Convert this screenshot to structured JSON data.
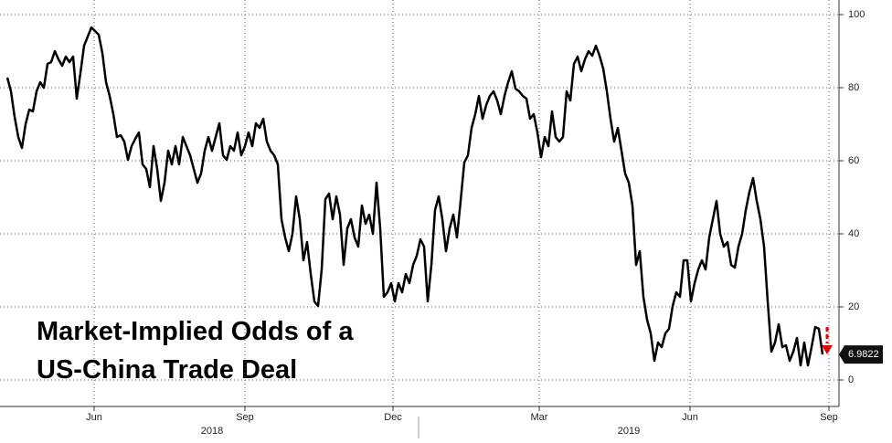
{
  "chart_data": {
    "type": "line",
    "annotation": [
      "Market-Implied Odds of a",
      "US-China Trade Deal"
    ],
    "color": "#000000",
    "categories": null,
    "values": [
      82.75,
      79,
      72,
      66.5,
      63.5,
      70,
      74,
      73.5,
      79,
      81.5,
      80,
      86.5,
      87,
      90,
      87.75,
      86,
      88.5,
      87,
      88.5,
      77,
      84,
      91.5,
      94,
      96.5,
      95.5,
      94.5,
      89.5,
      81.5,
      77.75,
      72.75,
      66.5,
      67,
      65.25,
      60.25,
      64,
      66,
      67.75,
      59,
      57.75,
      52.75,
      64,
      57.75,
      49,
      54,
      62.75,
      59,
      64,
      59,
      66.5,
      64,
      61.5,
      57.75,
      54,
      56.5,
      62.75,
      66.5,
      62.75,
      66.5,
      70.25,
      61.5,
      60.25,
      64,
      62.75,
      67.75,
      61.5,
      64,
      67.75,
      64,
      70.25,
      69,
      71.5,
      65.25,
      62.75,
      61.5,
      59,
      44,
      39,
      35.25,
      40,
      50.25,
      44,
      32.75,
      37.75,
      29,
      21.5,
      20.25,
      30.25,
      49.5,
      51,
      44,
      50.25,
      45.25,
      31.5,
      41.5,
      44,
      39,
      36.5,
      47.75,
      42.75,
      45.25,
      40,
      54,
      41.5,
      22.75,
      24,
      26.5,
      21.5,
      26.5,
      24,
      29,
      26.5,
      31.5,
      34,
      38.5,
      36.5,
      21.5,
      31.5,
      46.5,
      50.25,
      44,
      35.25,
      41.5,
      45.25,
      39,
      49,
      59.5,
      61.5,
      69,
      72.75,
      77.75,
      71.5,
      75.25,
      77.75,
      79,
      76.5,
      72.75,
      77.75,
      81.5,
      84.5,
      79.75,
      79,
      77.75,
      77,
      71.5,
      72.75,
      67.75,
      61,
      66.5,
      64,
      73.5,
      66.5,
      65.25,
      66.5,
      79,
      76.5,
      86.5,
      88.5,
      84.5,
      87.75,
      90,
      88.75,
      91.5,
      88.75,
      85.25,
      79,
      71.5,
      65.25,
      69,
      62.75,
      56.5,
      54,
      47.75,
      31.5,
      35.25,
      22.75,
      16.5,
      12.75,
      5.25,
      10.25,
      9,
      12.75,
      14,
      20.25,
      24,
      22.75,
      32.75,
      32.75,
      21.5,
      26.5,
      30.25,
      32.75,
      30.25,
      39,
      44,
      49,
      40,
      36.5,
      37.75,
      31.5,
      30.75,
      36.5,
      40,
      46.5,
      51.5,
      55.25,
      49,
      44,
      36.5,
      21.5,
      7.75,
      10.25,
      15.25,
      9,
      9.5,
      5.25,
      7.75,
      11.5,
      4,
      10.25,
      4,
      9,
      14.5,
      14,
      6.9822
    ],
    "xlim": [
      0,
      227.5
    ],
    "xticks": [
      {
        "value": 23.75,
        "label": "Jun"
      },
      {
        "value": 65,
        "label": "Sep"
      },
      {
        "value": 105.5,
        "label": "Dec"
      },
      {
        "value": 145.5,
        "label": "Mar"
      },
      {
        "value": 186.75,
        "label": "Jun"
      },
      {
        "value": 224.75,
        "label": "Sep"
      }
    ],
    "year_labels": [
      {
        "value": 56,
        "label": "2018"
      },
      {
        "value": 170,
        "label": "2019"
      }
    ],
    "ylim": [
      -7.25,
      104
    ],
    "yticks": [
      0,
      20,
      40,
      60,
      80,
      100
    ],
    "grid": true
  }
}
